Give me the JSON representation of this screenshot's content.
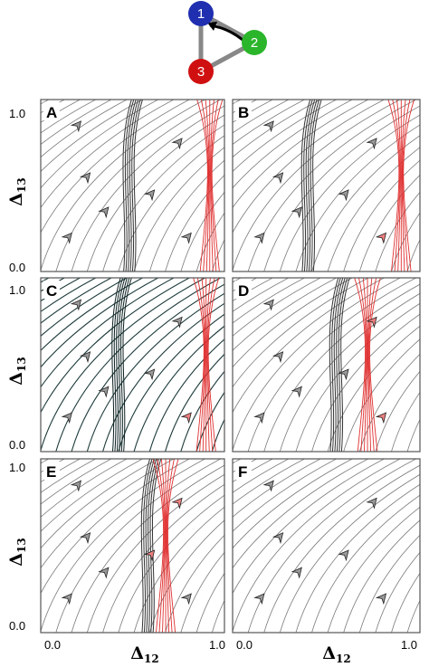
{
  "motif": {
    "nodes": [
      {
        "label": "1",
        "color": "#1f2fb0"
      },
      {
        "label": "2",
        "color": "#2bb52b"
      },
      {
        "label": "3",
        "color": "#d01010"
      }
    ]
  },
  "chart_data": {
    "type": "streamplot",
    "xlabel": "Δ",
    "xlabel_sub": "12",
    "ylabel": "Δ",
    "ylabel_sub": "13",
    "xlim": [
      0,
      1
    ],
    "ylim": [
      0,
      1
    ],
    "x_ticks": [
      "0.0",
      "1.0"
    ],
    "y_ticks": [
      "0.0",
      "1.0"
    ],
    "colors": {
      "flow": "#7a7a7a",
      "basin": "#e03030",
      "dark": "#1d3a3a"
    },
    "panels": [
      {
        "label": "A",
        "stable_x": 0.48,
        "red_x": 0.92,
        "dark": false
      },
      {
        "label": "B",
        "stable_x": 0.4,
        "red_x": 0.9,
        "dark": false
      },
      {
        "label": "C",
        "stable_x": 0.42,
        "red_x": 0.9,
        "dark": true
      },
      {
        "label": "D",
        "stable_x": 0.55,
        "red_x": 0.72,
        "dark": false
      },
      {
        "label": "E",
        "stable_x": 0.58,
        "red_x": 0.68,
        "dark": false
      },
      {
        "label": "F",
        "stable_x": null,
        "red_x": null,
        "dark": false
      }
    ]
  }
}
